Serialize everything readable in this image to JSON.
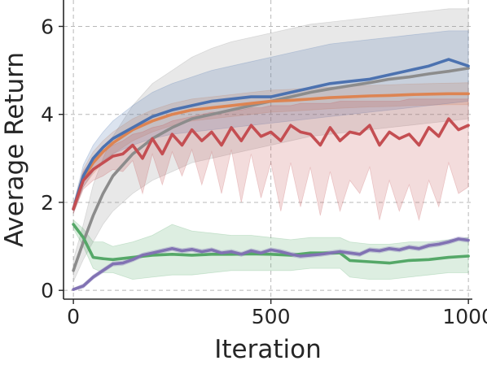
{
  "chart_data": {
    "type": "line",
    "title": "",
    "xlabel": "Iteration",
    "ylabel": "Average Return",
    "xlim": [
      -25,
      1010
    ],
    "ylim": [
      -0.2,
      6.6
    ],
    "xticks": [
      0,
      500,
      1000
    ],
    "yticks": [
      0,
      2,
      4,
      6
    ],
    "xtick_labels": [
      "0",
      "500",
      "1000"
    ],
    "ytick_labels": [
      "0",
      "2",
      "4",
      "6"
    ],
    "grid": true,
    "legend": "none",
    "series": [
      {
        "color": "#8c8c8c",
        "x": [
          0,
          25,
          50,
          75,
          100,
          150,
          200,
          250,
          300,
          350,
          400,
          450,
          500,
          550,
          600,
          650,
          700,
          750,
          800,
          850,
          900,
          950,
          1000
        ],
        "y": [
          0.45,
          1.1,
          1.7,
          2.2,
          2.6,
          3.1,
          3.45,
          3.7,
          3.9,
          4.0,
          4.1,
          4.2,
          4.3,
          4.4,
          4.5,
          4.58,
          4.65,
          4.72,
          4.8,
          4.85,
          4.92,
          4.98,
          5.05
        ],
        "upper": [
          0.7,
          1.5,
          2.4,
          3.0,
          3.5,
          4.2,
          4.7,
          5.0,
          5.3,
          5.5,
          5.65,
          5.75,
          5.85,
          5.95,
          6.05,
          6.1,
          6.15,
          6.2,
          6.25,
          6.3,
          6.35,
          6.4,
          6.4
        ],
        "lower": [
          0.2,
          0.7,
          1.1,
          1.5,
          1.8,
          2.2,
          2.5,
          2.7,
          2.9,
          3.0,
          3.1,
          3.2,
          3.3,
          3.4,
          3.5,
          3.55,
          3.6,
          3.65,
          3.7,
          3.75,
          3.8,
          3.85,
          3.9
        ]
      },
      {
        "color": "#dd8452",
        "x": [
          0,
          25,
          50,
          75,
          100,
          150,
          200,
          250,
          300,
          350,
          400,
          450,
          500,
          550,
          600,
          650,
          700,
          750,
          800,
          850,
          900,
          950,
          1000
        ],
        "y": [
          1.85,
          2.55,
          2.9,
          3.15,
          3.35,
          3.65,
          3.85,
          4.0,
          4.1,
          4.15,
          4.2,
          4.25,
          4.3,
          4.32,
          4.35,
          4.38,
          4.4,
          4.42,
          4.43,
          4.45,
          4.46,
          4.47,
          4.47
        ],
        "upper": [
          1.95,
          2.75,
          3.15,
          3.4,
          3.6,
          3.9,
          4.1,
          4.25,
          4.35,
          4.4,
          4.45,
          4.5,
          4.55,
          4.57,
          4.6,
          4.62,
          4.64,
          4.66,
          4.67,
          4.69,
          4.7,
          4.71,
          4.72
        ],
        "lower": [
          1.75,
          2.35,
          2.65,
          2.9,
          3.1,
          3.4,
          3.6,
          3.75,
          3.85,
          3.9,
          3.95,
          4.0,
          4.05,
          4.07,
          4.1,
          4.13,
          4.15,
          4.17,
          4.18,
          4.2,
          4.21,
          4.22,
          4.22
        ]
      },
      {
        "color": "#4c72b0",
        "x": [
          0,
          25,
          50,
          75,
          100,
          150,
          200,
          250,
          300,
          350,
          400,
          450,
          500,
          550,
          600,
          650,
          700,
          750,
          800,
          850,
          900,
          950,
          1000
        ],
        "y": [
          1.85,
          2.6,
          3.0,
          3.25,
          3.45,
          3.7,
          3.95,
          4.1,
          4.2,
          4.3,
          4.35,
          4.4,
          4.4,
          4.5,
          4.6,
          4.7,
          4.75,
          4.8,
          4.9,
          5.0,
          5.1,
          5.25,
          5.1
        ],
        "upper": [
          1.95,
          2.85,
          3.3,
          3.6,
          3.85,
          4.2,
          4.5,
          4.7,
          4.85,
          5.0,
          5.1,
          5.2,
          5.3,
          5.4,
          5.5,
          5.6,
          5.65,
          5.7,
          5.75,
          5.8,
          5.85,
          5.9,
          5.9
        ],
        "lower": [
          1.75,
          2.35,
          2.7,
          2.95,
          3.1,
          3.3,
          3.45,
          3.55,
          3.6,
          3.65,
          3.7,
          3.75,
          3.8,
          3.85,
          3.9,
          3.95,
          4.0,
          4.05,
          4.1,
          4.15,
          4.2,
          4.25,
          4.3
        ]
      },
      {
        "color": "#c44e52",
        "x": [
          0,
          25,
          50,
          75,
          100,
          125,
          150,
          175,
          200,
          225,
          250,
          275,
          300,
          325,
          350,
          375,
          400,
          425,
          450,
          475,
          500,
          525,
          550,
          575,
          600,
          625,
          650,
          675,
          700,
          725,
          750,
          775,
          800,
          825,
          850,
          875,
          900,
          925,
          950,
          975,
          1000
        ],
        "y": [
          1.85,
          2.5,
          2.75,
          2.9,
          3.05,
          3.1,
          3.3,
          3.0,
          3.45,
          3.1,
          3.55,
          3.3,
          3.65,
          3.4,
          3.6,
          3.3,
          3.7,
          3.4,
          3.75,
          3.5,
          3.6,
          3.4,
          3.75,
          3.6,
          3.55,
          3.3,
          3.7,
          3.4,
          3.6,
          3.55,
          3.75,
          3.3,
          3.6,
          3.45,
          3.55,
          3.3,
          3.7,
          3.5,
          3.9,
          3.65,
          3.75
        ],
        "upper": [
          1.95,
          2.7,
          3.0,
          3.15,
          3.3,
          3.4,
          3.55,
          3.6,
          3.7,
          3.75,
          3.85,
          3.9,
          3.95,
          4.0,
          4.05,
          4.05,
          4.1,
          4.1,
          4.15,
          4.15,
          4.2,
          4.2,
          4.2,
          4.25,
          4.25,
          4.25,
          4.25,
          4.3,
          4.3,
          4.3,
          4.3,
          4.3,
          4.3,
          4.3,
          4.35,
          4.35,
          4.35,
          4.35,
          4.35,
          4.35,
          4.35
        ],
        "lower": [
          1.75,
          2.3,
          2.5,
          2.6,
          2.75,
          2.7,
          2.95,
          2.2,
          3.1,
          2.4,
          3.15,
          2.6,
          3.2,
          2.4,
          3.15,
          2.2,
          3.2,
          2.0,
          3.1,
          2.1,
          2.9,
          1.8,
          2.9,
          1.9,
          2.8,
          1.7,
          2.7,
          1.8,
          2.5,
          2.2,
          2.8,
          1.6,
          2.5,
          1.8,
          2.4,
          1.6,
          2.5,
          1.9,
          2.9,
          2.2,
          2.35
        ]
      },
      {
        "color": "#55a868",
        "x": [
          0,
          25,
          50,
          75,
          100,
          150,
          200,
          250,
          300,
          350,
          400,
          450,
          500,
          550,
          600,
          650,
          675,
          700,
          750,
          800,
          850,
          900,
          950,
          1000
        ],
        "y": [
          1.5,
          1.2,
          0.75,
          0.72,
          0.7,
          0.75,
          0.8,
          0.82,
          0.8,
          0.82,
          0.82,
          0.83,
          0.82,
          0.8,
          0.85,
          0.85,
          0.85,
          0.68,
          0.65,
          0.62,
          0.68,
          0.7,
          0.75,
          0.78
        ],
        "upper": [
          1.6,
          1.4,
          1.1,
          1.1,
          1.0,
          1.1,
          1.25,
          1.5,
          1.35,
          1.3,
          1.25,
          1.25,
          1.2,
          1.15,
          1.2,
          1.2,
          1.2,
          1.1,
          1.05,
          1.05,
          1.1,
          1.1,
          1.15,
          1.2
        ],
        "lower": [
          1.4,
          1.0,
          0.5,
          0.4,
          0.4,
          0.25,
          0.3,
          0.35,
          0.35,
          0.4,
          0.45,
          0.45,
          0.45,
          0.45,
          0.5,
          0.5,
          0.5,
          0.3,
          0.25,
          0.25,
          0.3,
          0.35,
          0.4,
          0.4
        ]
      },
      {
        "color": "#8172b3",
        "x": [
          0,
          25,
          50,
          75,
          100,
          125,
          150,
          175,
          200,
          225,
          250,
          275,
          300,
          325,
          350,
          375,
          400,
          425,
          450,
          475,
          500,
          525,
          550,
          575,
          600,
          625,
          650,
          675,
          700,
          725,
          750,
          775,
          800,
          825,
          850,
          875,
          900,
          925,
          950,
          975,
          1000
        ],
        "y": [
          0.02,
          0.1,
          0.3,
          0.45,
          0.6,
          0.62,
          0.7,
          0.8,
          0.85,
          0.9,
          0.95,
          0.9,
          0.93,
          0.88,
          0.92,
          0.85,
          0.88,
          0.82,
          0.9,
          0.85,
          0.92,
          0.88,
          0.82,
          0.78,
          0.8,
          0.82,
          0.85,
          0.88,
          0.85,
          0.82,
          0.92,
          0.9,
          0.95,
          0.92,
          0.98,
          0.95,
          1.02,
          1.05,
          1.1,
          1.17,
          1.14
        ],
        "upper": [
          0.05,
          0.15,
          0.35,
          0.5,
          0.65,
          0.67,
          0.75,
          0.85,
          0.9,
          0.95,
          1.0,
          0.95,
          0.98,
          0.93,
          0.97,
          0.9,
          0.93,
          0.87,
          0.95,
          0.9,
          0.97,
          0.93,
          0.87,
          0.83,
          0.85,
          0.87,
          0.9,
          0.93,
          0.9,
          0.87,
          0.97,
          0.95,
          1.0,
          0.97,
          1.03,
          1.0,
          1.07,
          1.1,
          1.15,
          1.22,
          1.19
        ],
        "lower": [
          0.0,
          0.05,
          0.25,
          0.4,
          0.55,
          0.57,
          0.65,
          0.75,
          0.8,
          0.85,
          0.9,
          0.85,
          0.88,
          0.83,
          0.87,
          0.8,
          0.83,
          0.77,
          0.85,
          0.8,
          0.87,
          0.83,
          0.77,
          0.73,
          0.75,
          0.77,
          0.8,
          0.83,
          0.8,
          0.77,
          0.87,
          0.85,
          0.9,
          0.87,
          0.93,
          0.9,
          0.97,
          1.0,
          1.05,
          1.12,
          1.09
        ]
      }
    ]
  }
}
